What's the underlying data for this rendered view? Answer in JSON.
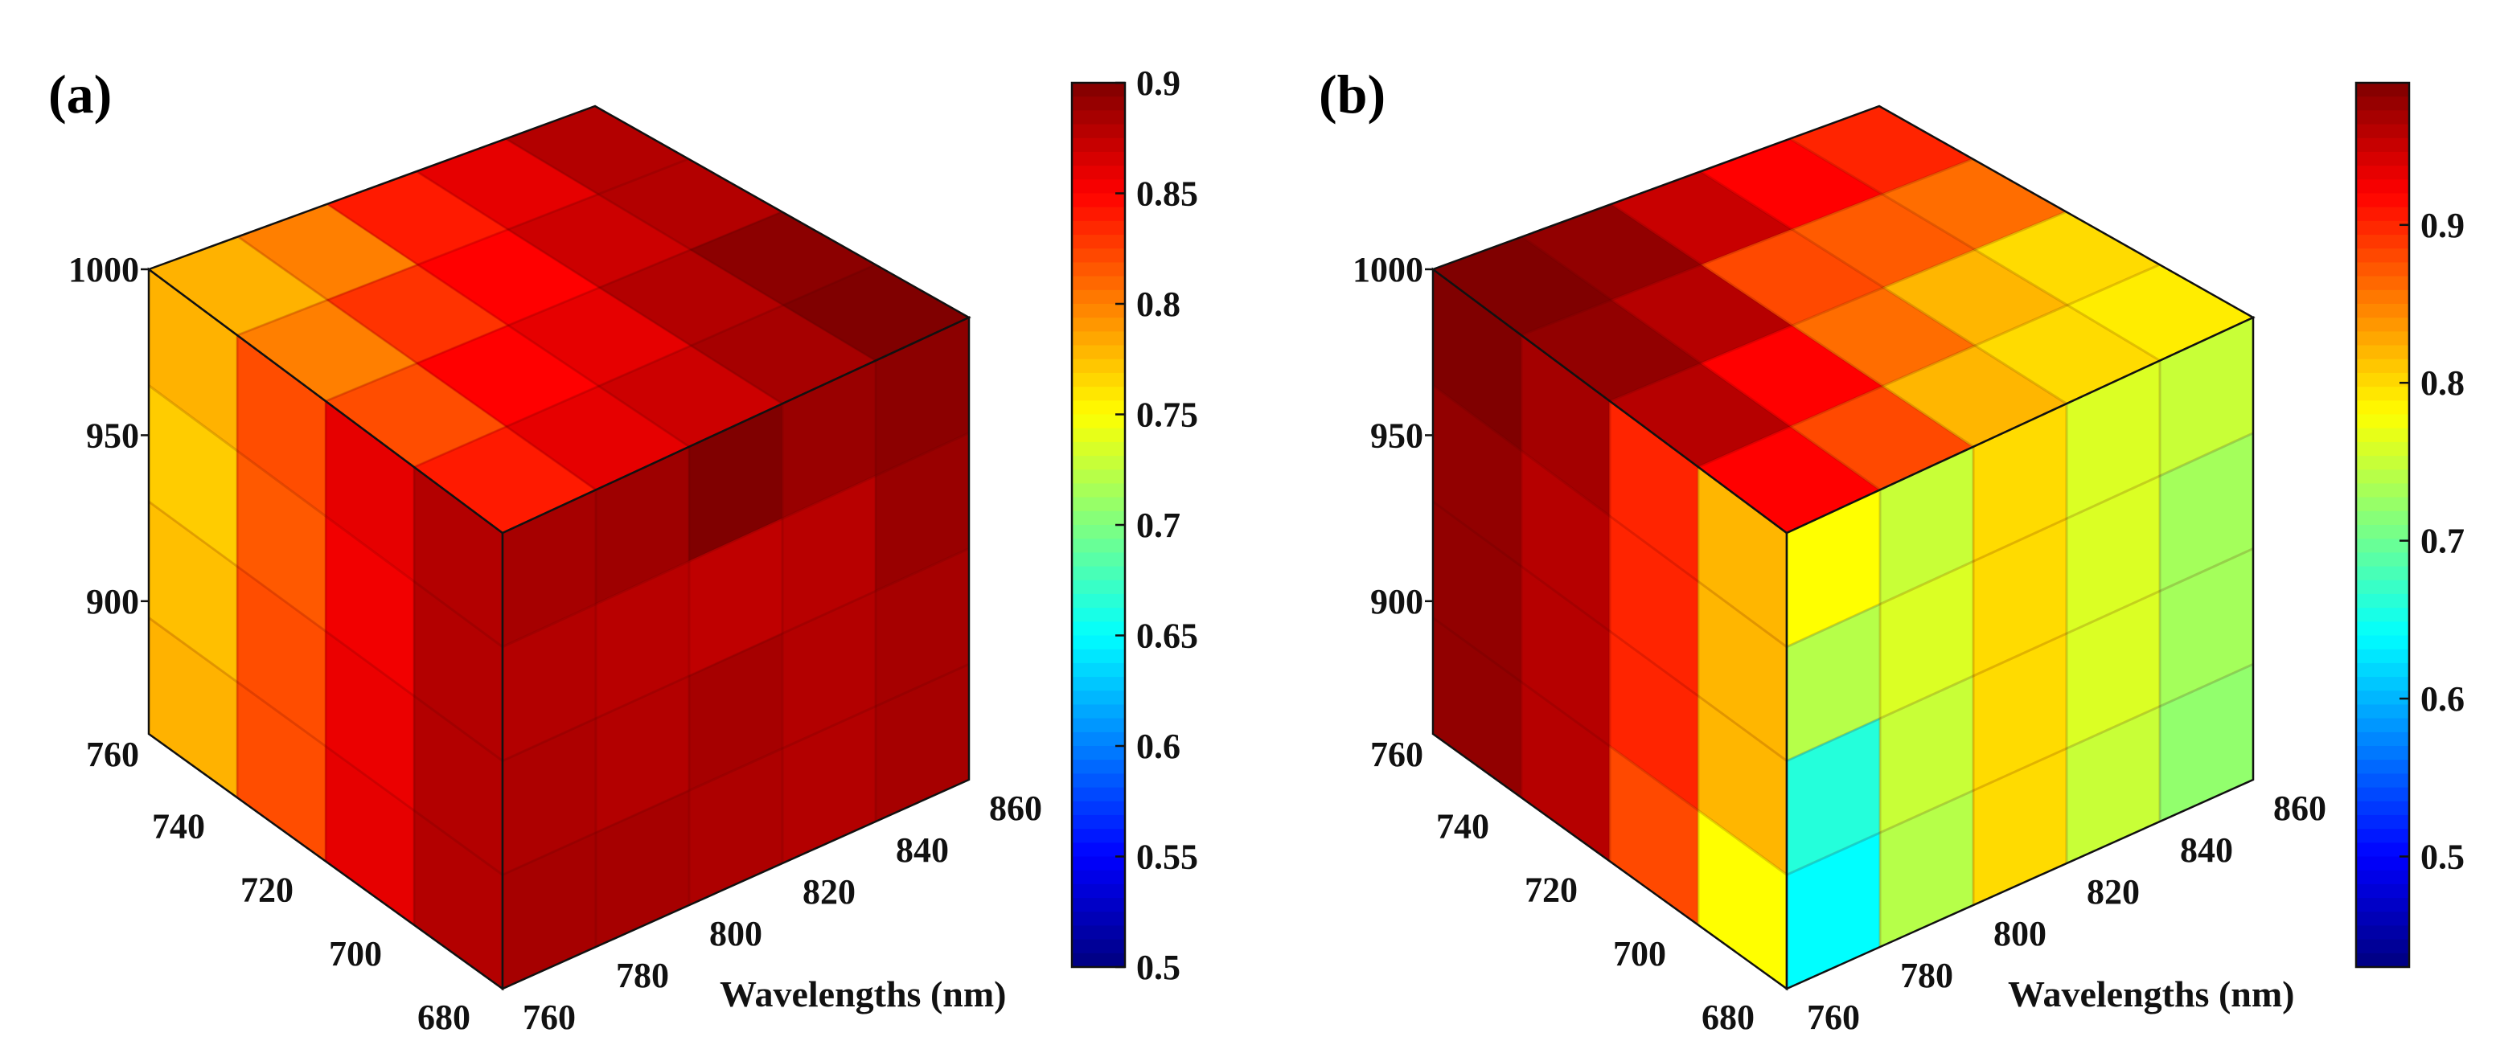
{
  "chart_data": [
    {
      "type": "heatmap",
      "panel_label": "(a)",
      "title": "",
      "xlabel": "Wavelengths (nm)",
      "x_ticks": [
        "760",
        "780",
        "800",
        "820",
        "840",
        "860"
      ],
      "y_ticks": [
        "680",
        "700",
        "720",
        "740",
        "760"
      ],
      "z_ticks": [
        "1000",
        "950",
        "900"
      ],
      "x_range": [
        760,
        860
      ],
      "y_range": [
        680,
        760
      ],
      "z_range": [
        860,
        1000
      ],
      "colorbar": {
        "colormap": "jet",
        "range": [
          0.5,
          0.9
        ],
        "ticks": [
          "0.9",
          "0.85",
          "0.8",
          "0.75",
          "0.7",
          "0.65",
          "0.6",
          "0.55",
          "0.5"
        ]
      },
      "faces": {
        "front": [
          [
            0.885,
            0.888,
            0.9,
            0.89,
            0.895
          ],
          [
            0.88,
            0.878,
            0.875,
            0.878,
            0.89
          ],
          [
            0.882,
            0.88,
            0.885,
            0.88,
            0.885
          ],
          [
            0.885,
            0.885,
            0.882,
            0.88,
            0.885
          ]
        ],
        "left": [
          [
            0.78,
            0.82,
            0.86,
            0.88
          ],
          [
            0.77,
            0.815,
            0.855,
            0.88
          ],
          [
            0.775,
            0.82,
            0.858,
            0.88
          ],
          [
            0.78,
            0.82,
            0.86,
            0.88
          ]
        ],
        "top": [
          [
            0.78,
            0.8,
            0.84,
            0.86,
            0.88
          ],
          [
            0.8,
            0.83,
            0.85,
            0.87,
            0.88
          ],
          [
            0.82,
            0.85,
            0.86,
            0.88,
            0.895
          ],
          [
            0.84,
            0.86,
            0.87,
            0.885,
            0.9
          ]
        ]
      }
    },
    {
      "type": "heatmap",
      "panel_label": "(b)",
      "title": "",
      "xlabel": "Wavelengths (nm)",
      "x_ticks": [
        "760",
        "780",
        "800",
        "820",
        "840",
        "860"
      ],
      "y_ticks": [
        "680",
        "700",
        "720",
        "740",
        "760"
      ],
      "z_ticks": [
        "1000",
        "950",
        "900"
      ],
      "x_range": [
        760,
        860
      ],
      "y_range": [
        680,
        760
      ],
      "z_range": [
        860,
        1000
      ],
      "colorbar": {
        "colormap": "jet",
        "range": [
          0.43,
          0.99
        ],
        "ticks": [
          "0.9",
          "0.8",
          "0.7",
          "0.6",
          "0.5"
        ]
      },
      "faces": {
        "front": [
          [
            0.78,
            0.75,
            0.8,
            0.76,
            0.75
          ],
          [
            0.74,
            0.76,
            0.8,
            0.76,
            0.73
          ],
          [
            0.66,
            0.75,
            0.8,
            0.76,
            0.73
          ],
          [
            0.64,
            0.74,
            0.8,
            0.75,
            0.72
          ]
        ],
        "left": [
          [
            0.99,
            0.97,
            0.9,
            0.82
          ],
          [
            0.98,
            0.96,
            0.9,
            0.82
          ],
          [
            0.98,
            0.96,
            0.9,
            0.82
          ],
          [
            0.98,
            0.96,
            0.88,
            0.78
          ]
        ],
        "top": [
          [
            0.99,
            0.98,
            0.95,
            0.92,
            0.9
          ],
          [
            0.98,
            0.96,
            0.88,
            0.87,
            0.86
          ],
          [
            0.96,
            0.92,
            0.86,
            0.82,
            0.8
          ],
          [
            0.92,
            0.88,
            0.82,
            0.8,
            0.79
          ]
        ]
      }
    }
  ]
}
